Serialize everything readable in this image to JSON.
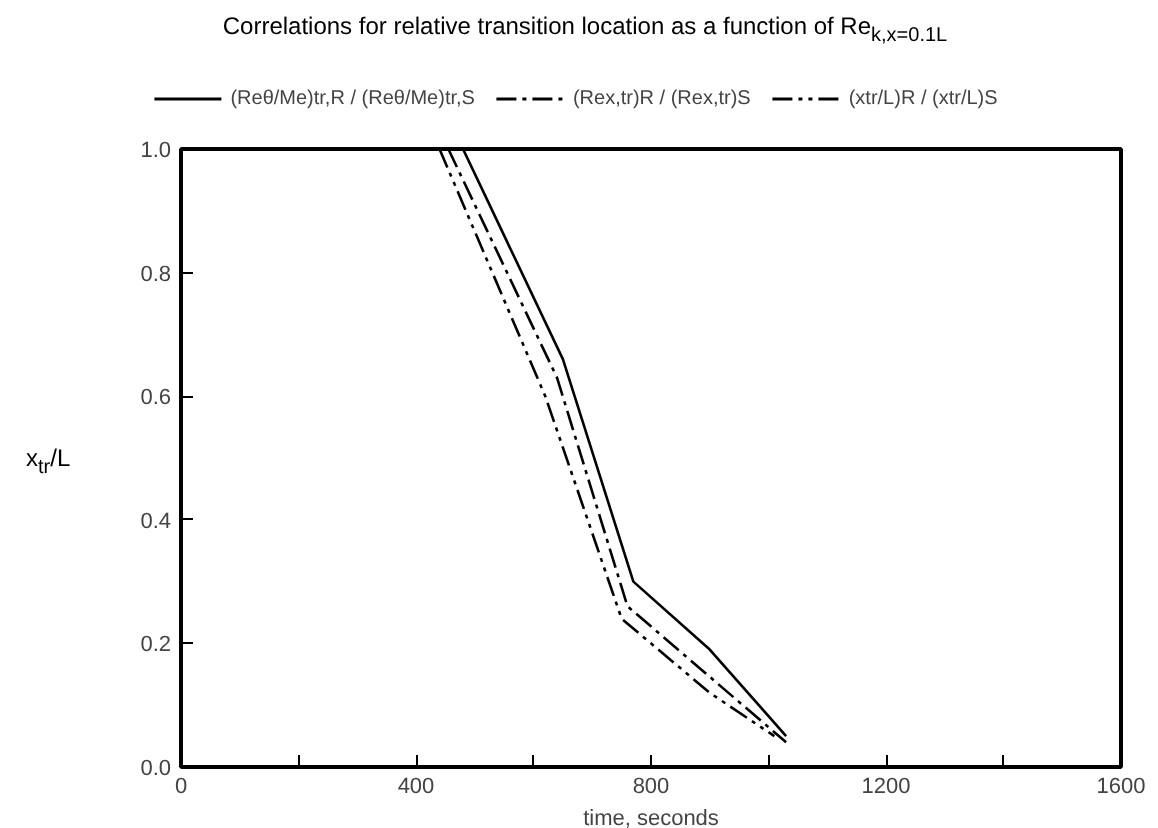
{
  "chart_data": {
    "type": "line",
    "title": "Correlations for relative transition location as a function of Re$_{k,x=0.1L}$",
    "xlabel": "time, seconds",
    "ylabel": "x$_{tr}$/L",
    "xlim": [
      0,
      1600
    ],
    "ylim": [
      0,
      1.0
    ],
    "xticks": [
      0,
      {
        "value": 200,
        "label": null
      },
      400,
      {
        "value": 600,
        "label": null
      },
      800,
      {
        "value": 1000,
        "label": null
      },
      1200,
      {
        "value": 1400,
        "label": null
      },
      1600
    ],
    "yticks": [
      {
        "value": 0,
        "label": "0.0"
      },
      0.2,
      0.4,
      0.6,
      0.8,
      {
        "value": 1.0,
        "label": "1.0"
      }
    ],
    "grid": false,
    "legend": "top",
    "series": [
      {
        "name": "(Reθ/Me)tr,R / (Reθ/Me)tr,S",
        "color": "#000000",
        "line_style": "solid",
        "x": [
          480,
          650,
          770,
          900,
          1030
        ],
        "values": [
          1.0,
          0.66,
          0.3,
          0.19,
          0.05
        ]
      },
      {
        "name": "(Rex,tr)R / (Rex,tr)S",
        "color": "#000000",
        "line_style": "dashdot",
        "x": [
          455,
          640,
          760,
          1030
        ],
        "values": [
          1.0,
          0.63,
          0.26,
          0.04
        ]
      },
      {
        "name": "(xtr/L)R / (xtr/L)S",
        "color": "#000000",
        "line_style": "dashdotdot",
        "x": [
          440,
          620,
          750,
          900,
          1010
        ],
        "values": [
          1.0,
          0.6,
          0.24,
          0.12,
          0.05
        ]
      }
    ]
  }
}
